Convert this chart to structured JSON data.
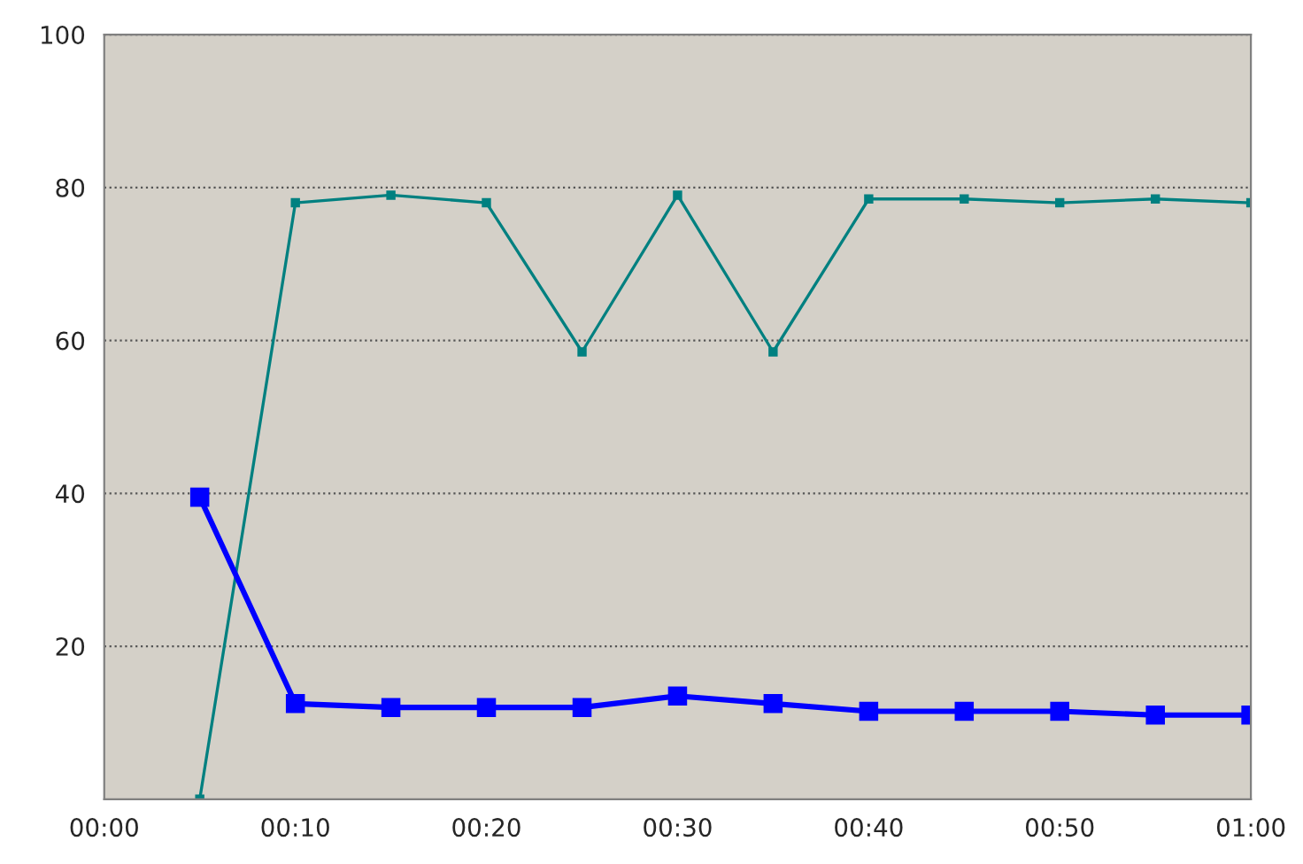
{
  "chart_data": {
    "type": "line",
    "x": [
      0.0833,
      0.1667,
      0.25,
      0.3333,
      0.4167,
      0.5,
      0.5833,
      0.6667,
      0.75,
      0.8333,
      0.9167,
      1.0
    ],
    "series": [
      {
        "color": "#008080",
        "values": [
          0,
          78,
          79,
          78,
          58.5,
          79,
          58.5,
          78.5,
          78.5,
          78,
          78.5,
          78
        ]
      },
      {
        "color": "#0000ff",
        "values": [
          39.5,
          12.5,
          12,
          12,
          12,
          13.5,
          12.5,
          11.5,
          11.5,
          11.5,
          11,
          11
        ]
      }
    ],
    "xlim": [
      0,
      1.0
    ],
    "xticks": [
      {
        "value": 0,
        "label": "00:00"
      },
      {
        "value": 0.1667,
        "label": "00:10"
      },
      {
        "value": 0.3333,
        "label": "00:20"
      },
      {
        "value": 0.5,
        "label": "00:30"
      },
      {
        "value": 0.6667,
        "label": "00:40"
      },
      {
        "value": 0.8333,
        "label": "00:50"
      },
      {
        "value": 1.0,
        "label": "01:00"
      }
    ],
    "ylim": [
      0,
      100
    ],
    "yticks": [
      20,
      40,
      60,
      80,
      100
    ],
    "grid": "y",
    "marker": "square",
    "line_style": "solid"
  }
}
